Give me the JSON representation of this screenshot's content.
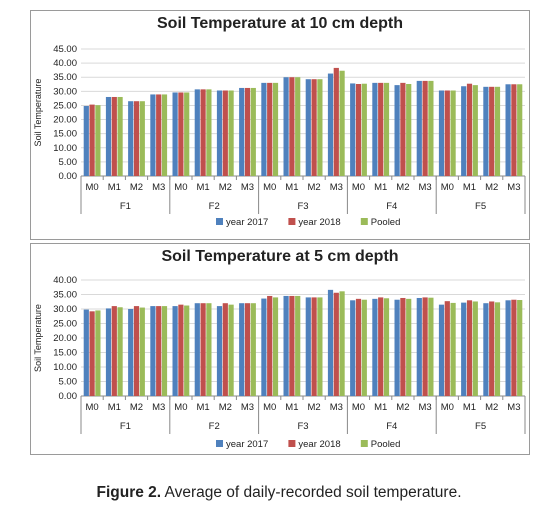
{
  "caption": {
    "label": "Figure 2.",
    "text": " Average of daily-recorded soil temperature."
  },
  "colors": {
    "year2017": "#4f81bd",
    "year2018": "#c0504d",
    "pooled": "#9bbb59",
    "grid": "#d9d9d9",
    "axis": "#888888"
  },
  "chart_data": [
    {
      "type": "bar",
      "title": "Soil Temperature  at 10 cm depth",
      "ylabel": "Soil Temperature",
      "ylim": [
        0,
        45
      ],
      "yticks": [
        "0.00",
        "5.00",
        "10.00",
        "15.00",
        "20.00",
        "25.00",
        "30.00",
        "35.00",
        "40.00",
        "45.00"
      ],
      "categories": [
        "M0",
        "M1",
        "M2",
        "M3",
        "M0",
        "M1",
        "M2",
        "M3",
        "M0",
        "M1",
        "M2",
        "M3",
        "M0",
        "M1",
        "M2",
        "M3",
        "M0",
        "M1",
        "M2",
        "M3"
      ],
      "groups": [
        "F1",
        "F2",
        "F3",
        "F4",
        "F5"
      ],
      "series": [
        {
          "name": "year 2017",
          "values": [
            24.8,
            28.0,
            26.5,
            28.9,
            29.6,
            30.7,
            30.3,
            31.2,
            33.0,
            35.0,
            34.3,
            36.3,
            32.8,
            33.0,
            32.2,
            33.7,
            30.3,
            31.8,
            31.6,
            32.5
          ]
        },
        {
          "name": "year 2018",
          "values": [
            25.3,
            28.0,
            26.5,
            28.9,
            29.6,
            30.7,
            30.3,
            31.2,
            33.0,
            35.0,
            34.3,
            38.3,
            32.6,
            33.0,
            33.0,
            33.7,
            30.3,
            32.7,
            31.6,
            32.5
          ]
        },
        {
          "name": "Pooled",
          "values": [
            25.1,
            28.0,
            26.5,
            28.9,
            29.6,
            30.7,
            30.3,
            31.2,
            33.0,
            35.0,
            34.3,
            37.3,
            32.7,
            33.0,
            32.6,
            33.7,
            30.3,
            32.2,
            31.6,
            32.5
          ]
        }
      ],
      "legend": "bottom"
    },
    {
      "type": "bar",
      "title": "Soil Temperature  at 5 cm depth",
      "ylabel": "Soil Temperature",
      "ylim": [
        0,
        40
      ],
      "yticks": [
        "0.00",
        "5.00",
        "10.00",
        "15.00",
        "20.00",
        "25.00",
        "30.00",
        "35.00",
        "40.00"
      ],
      "categories": [
        "M0",
        "M1",
        "M2",
        "M3",
        "M0",
        "M1",
        "M2",
        "M3",
        "M0",
        "M1",
        "M2",
        "M3",
        "M0",
        "M1",
        "M2",
        "M3",
        "M0",
        "M1",
        "M2",
        "M3"
      ],
      "groups": [
        "F1",
        "F2",
        "F3",
        "F4",
        "F5"
      ],
      "series": [
        {
          "name": "year 2017",
          "values": [
            29.8,
            30.2,
            30.0,
            31.0,
            31.0,
            32.0,
            31.0,
            32.0,
            33.6,
            34.5,
            34.0,
            36.6,
            33.0,
            33.5,
            33.2,
            33.8,
            31.5,
            32.2,
            32.0,
            33.0
          ]
        },
        {
          "name": "year 2018",
          "values": [
            29.2,
            31.0,
            31.0,
            31.0,
            31.5,
            32.0,
            32.0,
            32.0,
            34.5,
            34.5,
            34.0,
            35.6,
            33.5,
            34.0,
            33.8,
            34.0,
            32.7,
            33.0,
            32.6,
            33.2
          ]
        },
        {
          "name": "Pooled",
          "values": [
            29.5,
            30.6,
            30.5,
            31.0,
            31.2,
            32.0,
            31.5,
            32.0,
            34.0,
            34.5,
            34.0,
            36.1,
            33.2,
            33.7,
            33.5,
            33.9,
            32.1,
            32.6,
            32.3,
            33.1
          ]
        }
      ],
      "legend": "bottom"
    }
  ]
}
